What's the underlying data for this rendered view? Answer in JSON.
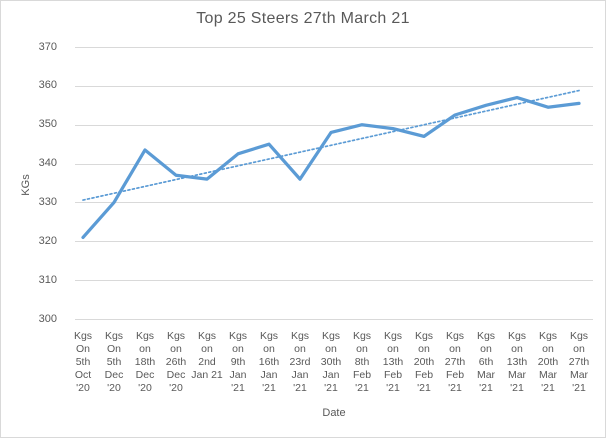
{
  "window": {
    "background": "#ffffff",
    "border_color": "#d9d9d9"
  },
  "colors": {
    "series_line": "#5b9bd5",
    "trendline": "#5b9bd5",
    "gridline": "#d9d9d9",
    "axis_text": "#595959",
    "title_text": "#595959"
  },
  "chart_data": {
    "type": "line",
    "title": "Top 25 Steers 27th March 21",
    "xlabel": "Date",
    "ylabel": "KGs",
    "ylim": [
      300,
      370
    ],
    "y_ticks": [
      370,
      360,
      350,
      340,
      330,
      320,
      310,
      300
    ],
    "grid": true,
    "legend_position": "none",
    "categories": [
      "Kgs On 5th Oct '20",
      "Kgs On 5th Dec '20",
      "Kgs on 18th Dec '20",
      "Kgs on 26th Dec '20",
      "Kgs on 2nd Jan 21",
      "Kgs on 9th Jan '21",
      "Kgs on 16th Jan '21",
      "Kgs on 23rd Jan '21",
      "Kgs on 30th Jan '21",
      "Kgs on 8th Feb '21",
      "Kgs on 13th Feb '21",
      "Kgs on 20th Feb '21",
      "Kgs on 27th Feb '21",
      "Kgs on 6th Mar '21",
      "Kgs on 13th Mar '21",
      "Kgs on 20th Mar '21",
      "Kgs on 27th Mar '21"
    ],
    "category_lines": [
      [
        "Kgs",
        "On",
        "5th",
        "Oct",
        "'20"
      ],
      [
        "Kgs",
        "On",
        "5th",
        "Dec",
        "'20"
      ],
      [
        "Kgs",
        "on",
        "18th",
        "Dec",
        "'20"
      ],
      [
        "Kgs",
        "on",
        "26th",
        "Dec",
        "'20"
      ],
      [
        "Kgs",
        "on",
        "2nd",
        "Jan 21"
      ],
      [
        "Kgs",
        "on",
        "9th",
        "Jan",
        "'21"
      ],
      [
        "Kgs",
        "on",
        "16th",
        "Jan",
        "'21"
      ],
      [
        "Kgs",
        "on",
        "23rd",
        "Jan",
        "'21"
      ],
      [
        "Kgs",
        "on",
        "30th",
        "Jan",
        "'21"
      ],
      [
        "Kgs",
        "on",
        "8th",
        "Feb",
        "'21"
      ],
      [
        "Kgs",
        "on",
        "13th",
        "Feb",
        "'21"
      ],
      [
        "Kgs",
        "on",
        "20th",
        "Feb",
        "'21"
      ],
      [
        "Kgs",
        "on",
        "27th",
        "Feb",
        "'21"
      ],
      [
        "Kgs",
        "on",
        "6th",
        "Mar",
        "'21"
      ],
      [
        "Kgs",
        "on",
        "13th",
        "Mar",
        "'21"
      ],
      [
        "Kgs",
        "on",
        "20th",
        "Mar",
        "'21"
      ],
      [
        "Kgs",
        "on",
        "27th",
        "Mar",
        "'21"
      ]
    ],
    "series": [
      {
        "name": "Kgs",
        "color": "#5b9bd5",
        "style": "solid",
        "values": [
          321,
          330,
          343.5,
          337,
          336,
          342.5,
          345,
          336,
          348,
          350,
          349,
          347,
          352.5,
          355,
          357,
          354.5,
          355.5
        ]
      }
    ],
    "trendline": {
      "type": "linear",
      "style": "dotted",
      "color": "#5b9bd5",
      "start_value": 330.6,
      "end_value": 358.8
    }
  }
}
